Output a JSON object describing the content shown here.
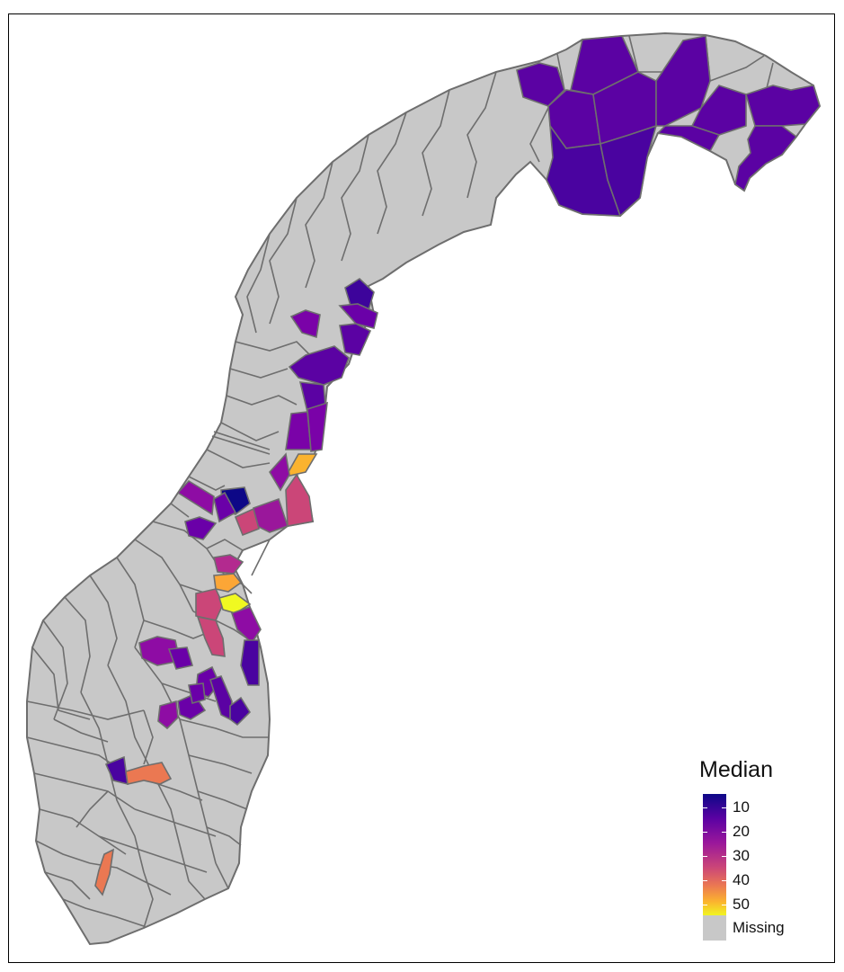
{
  "legend": {
    "title": "Median",
    "ticks": [
      "10",
      "20",
      "30",
      "40",
      "50"
    ],
    "missing_label": "Missing",
    "scale": [
      "#0d0887",
      "#5b02a3",
      "#9a179b",
      "#cb4678",
      "#eb7852",
      "#fbb32f",
      "#f0f921"
    ],
    "missing_color": "#c8c8c8"
  },
  "colors": {
    "border": "#6e6e6e",
    "land": "#c8c8c8"
  }
}
